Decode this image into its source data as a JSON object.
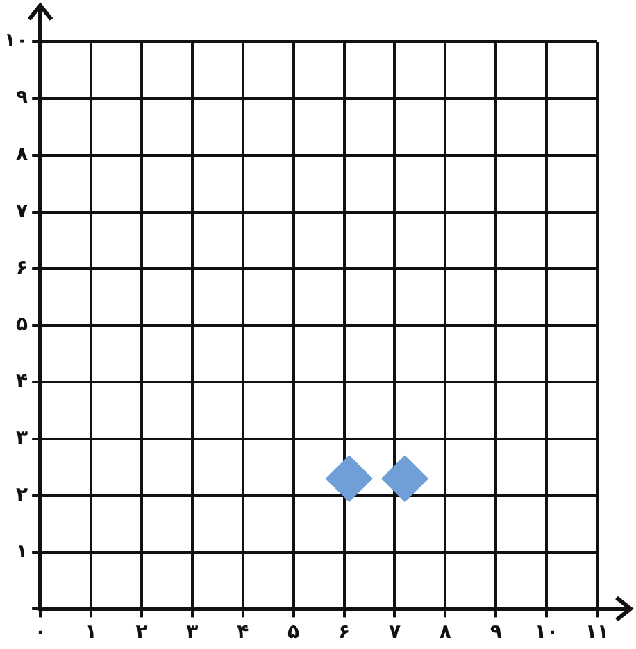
{
  "chart_data": {
    "type": "scatter",
    "x": [
      6.1,
      7.2
    ],
    "values": [
      2.3,
      2.3
    ],
    "color": "#6f9fd6",
    "marker": "diamond",
    "xlim": [
      0,
      11
    ],
    "ylim": [
      0,
      10
    ],
    "xticks": [
      {
        "value": 0,
        "label": "۰"
      },
      {
        "value": 1,
        "label": "۱"
      },
      {
        "value": 2,
        "label": "۲"
      },
      {
        "value": 3,
        "label": "۳"
      },
      {
        "value": 4,
        "label": "۴"
      },
      {
        "value": 5,
        "label": "۵"
      },
      {
        "value": 6,
        "label": "۶"
      },
      {
        "value": 7,
        "label": "۷"
      },
      {
        "value": 8,
        "label": "۸"
      },
      {
        "value": 9,
        "label": "۹"
      },
      {
        "value": 10,
        "label": "۱۰"
      },
      {
        "value": 11,
        "label": "۱۱"
      }
    ],
    "yticks": [
      {
        "value": 0,
        "label": null
      },
      {
        "value": 1,
        "label": "۱"
      },
      {
        "value": 2,
        "label": "۲"
      },
      {
        "value": 3,
        "label": "۳"
      },
      {
        "value": 4,
        "label": "۴"
      },
      {
        "value": 5,
        "label": "۵"
      },
      {
        "value": 6,
        "label": "۶"
      },
      {
        "value": 7,
        "label": "۷"
      },
      {
        "value": 8,
        "label": "۸"
      },
      {
        "value": 9,
        "label": "۹"
      },
      {
        "value": 10,
        "label": "۱۰"
      }
    ],
    "grid": true,
    "legend": false
  }
}
